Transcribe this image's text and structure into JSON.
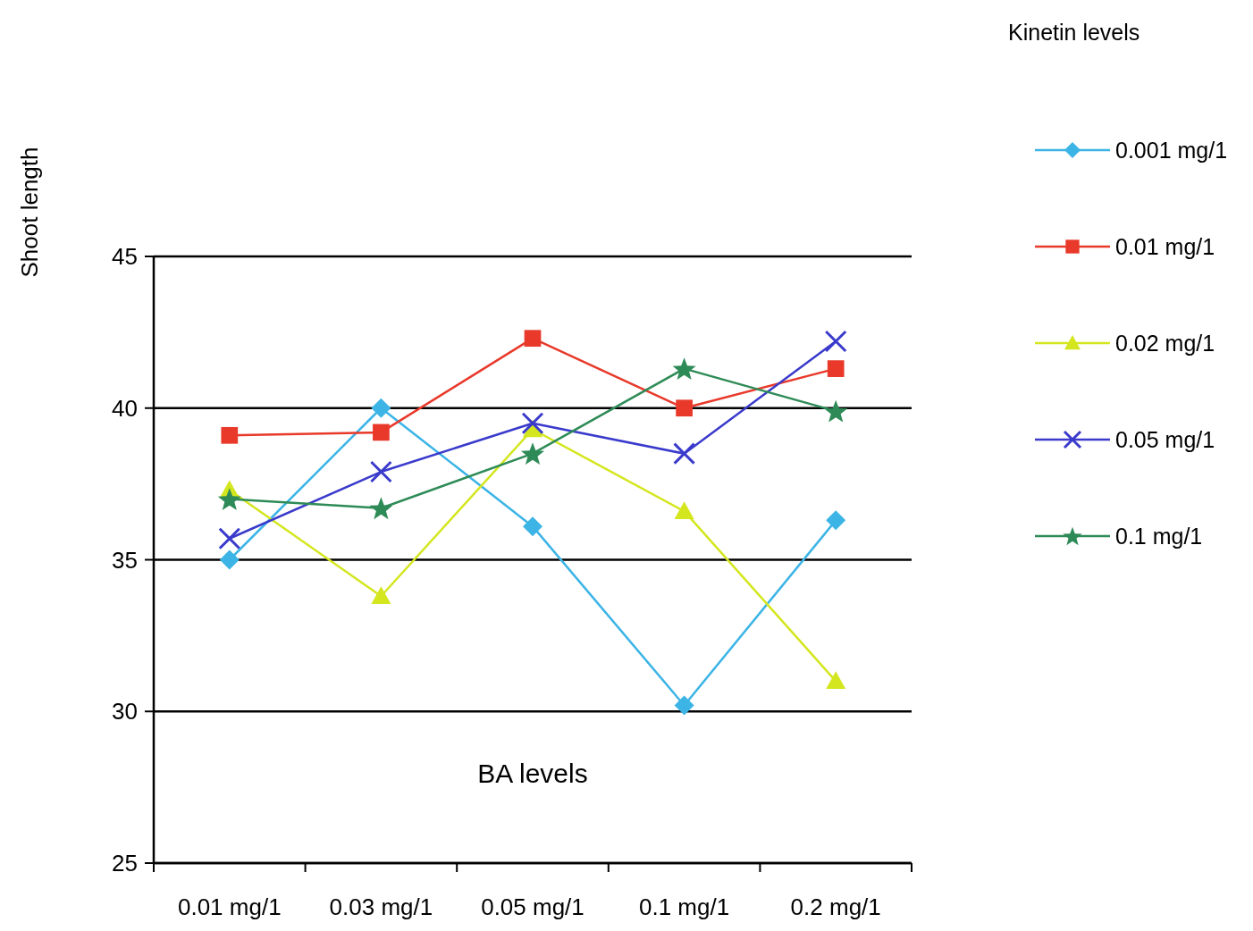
{
  "chart_data": {
    "type": "line",
    "xlabel": "BA levels",
    "ylabel": "Shoot length",
    "legend_title": "Kinetin levels",
    "categories": [
      "0.01 mg/1",
      "0.03 mg/1",
      "0.05 mg/1",
      "0.1 mg/1",
      "0.2 mg/1"
    ],
    "series": [
      {
        "name": "0.001 mg/1",
        "color": "#3cb4e6",
        "marker": "diamond",
        "values": [
          35.0,
          40.0,
          36.1,
          30.2,
          36.3
        ]
      },
      {
        "name": "0.01 mg/1",
        "color": "#e8392a",
        "marker": "square",
        "values": [
          39.1,
          39.2,
          42.3,
          40.0,
          41.3
        ]
      },
      {
        "name": "0.02 mg/1",
        "color": "#d4e61e",
        "marker": "triangle",
        "values": [
          37.3,
          33.8,
          39.3,
          36.6,
          31.0
        ]
      },
      {
        "name": "0.05 mg/1",
        "color": "#3a3acc",
        "marker": "cross",
        "values": [
          35.7,
          37.9,
          39.5,
          38.5,
          42.2
        ]
      },
      {
        "name": "0.1 mg/1",
        "color": "#2e8b57",
        "marker": "star",
        "values": [
          37.0,
          36.7,
          38.5,
          41.3,
          39.9
        ]
      }
    ],
    "ylim": [
      25,
      45
    ],
    "yticks": [
      25,
      30,
      35,
      40,
      45
    ],
    "grid": "y",
    "legend": "right"
  }
}
